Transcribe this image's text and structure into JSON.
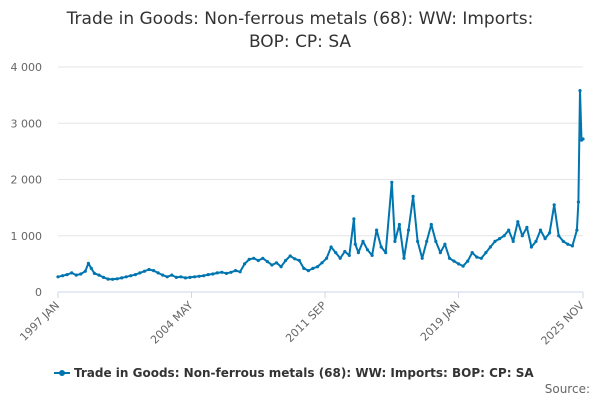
{
  "chart_data": {
    "type": "line",
    "title_lines": [
      "Trade in Goods: Non-ferrous metals (68): WW: Imports:",
      "BOP: CP: SA"
    ],
    "xlabel": "",
    "ylabel": "",
    "x_start": "1997-01",
    "x_end": "2025-11",
    "ylim": [
      0,
      4000
    ],
    "y_ticks": [
      0,
      1000,
      2000,
      3000,
      4000
    ],
    "y_tick_labels": [
      "0",
      "1 000",
      "2 000",
      "3 000",
      "4 000"
    ],
    "x_ticks": [
      {
        "label": "1997 JAN",
        "t": 1997.0
      },
      {
        "label": "2004 MAY",
        "t": 2004.333
      },
      {
        "label": "2011 SEP",
        "t": 2011.667
      },
      {
        "label": "2019 JAN",
        "t": 2019.0
      },
      {
        "label": "2025 NOV",
        "t": 2025.833
      }
    ],
    "legend_position": "bottom",
    "grid": true,
    "series": [
      {
        "name": "Trade in Goods: Non-ferrous metals (68): WW: Imports: BOP: CP: SA",
        "color": "#0075b0",
        "points": [
          [
            1997.0,
            270
          ],
          [
            1997.25,
            290
          ],
          [
            1997.5,
            310
          ],
          [
            1997.75,
            340
          ],
          [
            1998.0,
            300
          ],
          [
            1998.25,
            320
          ],
          [
            1998.5,
            370
          ],
          [
            1998.67,
            510
          ],
          [
            1998.83,
            420
          ],
          [
            1999.0,
            330
          ],
          [
            1999.25,
            300
          ],
          [
            1999.5,
            260
          ],
          [
            1999.75,
            230
          ],
          [
            2000.0,
            225
          ],
          [
            2000.25,
            235
          ],
          [
            2000.5,
            250
          ],
          [
            2000.75,
            270
          ],
          [
            2001.0,
            290
          ],
          [
            2001.25,
            310
          ],
          [
            2001.5,
            340
          ],
          [
            2001.75,
            370
          ],
          [
            2002.0,
            400
          ],
          [
            2002.25,
            380
          ],
          [
            2002.5,
            340
          ],
          [
            2002.75,
            300
          ],
          [
            2003.0,
            270
          ],
          [
            2003.25,
            300
          ],
          [
            2003.5,
            260
          ],
          [
            2003.75,
            270
          ],
          [
            2004.0,
            250
          ],
          [
            2004.25,
            260
          ],
          [
            2004.5,
            270
          ],
          [
            2004.75,
            280
          ],
          [
            2005.0,
            290
          ],
          [
            2005.25,
            310
          ],
          [
            2005.5,
            320
          ],
          [
            2005.75,
            340
          ],
          [
            2006.0,
            350
          ],
          [
            2006.25,
            330
          ],
          [
            2006.5,
            350
          ],
          [
            2006.75,
            380
          ],
          [
            2007.0,
            360
          ],
          [
            2007.25,
            500
          ],
          [
            2007.5,
            580
          ],
          [
            2007.75,
            600
          ],
          [
            2008.0,
            560
          ],
          [
            2008.25,
            600
          ],
          [
            2008.5,
            540
          ],
          [
            2008.75,
            480
          ],
          [
            2009.0,
            520
          ],
          [
            2009.25,
            450
          ],
          [
            2009.5,
            560
          ],
          [
            2009.75,
            640
          ],
          [
            2010.0,
            590
          ],
          [
            2010.25,
            560
          ],
          [
            2010.5,
            420
          ],
          [
            2010.75,
            380
          ],
          [
            2011.0,
            420
          ],
          [
            2011.25,
            450
          ],
          [
            2011.5,
            520
          ],
          [
            2011.75,
            600
          ],
          [
            2012.0,
            800
          ],
          [
            2012.25,
            700
          ],
          [
            2012.5,
            600
          ],
          [
            2012.75,
            720
          ],
          [
            2013.0,
            650
          ],
          [
            2013.25,
            1300
          ],
          [
            2013.33,
            850
          ],
          [
            2013.5,
            700
          ],
          [
            2013.75,
            900
          ],
          [
            2014.0,
            750
          ],
          [
            2014.25,
            650
          ],
          [
            2014.5,
            1100
          ],
          [
            2014.75,
            800
          ],
          [
            2015.0,
            700
          ],
          [
            2015.33,
            1950
          ],
          [
            2015.5,
            900
          ],
          [
            2015.75,
            1200
          ],
          [
            2016.0,
            600
          ],
          [
            2016.25,
            1100
          ],
          [
            2016.5,
            1700
          ],
          [
            2016.75,
            900
          ],
          [
            2017.0,
            600
          ],
          [
            2017.25,
            900
          ],
          [
            2017.5,
            1200
          ],
          [
            2017.75,
            900
          ],
          [
            2018.0,
            700
          ],
          [
            2018.25,
            850
          ],
          [
            2018.5,
            600
          ],
          [
            2018.75,
            550
          ],
          [
            2019.0,
            500
          ],
          [
            2019.25,
            460
          ],
          [
            2019.5,
            550
          ],
          [
            2019.75,
            700
          ],
          [
            2020.0,
            620
          ],
          [
            2020.25,
            600
          ],
          [
            2020.5,
            700
          ],
          [
            2020.75,
            800
          ],
          [
            2021.0,
            900
          ],
          [
            2021.25,
            950
          ],
          [
            2021.5,
            1000
          ],
          [
            2021.75,
            1100
          ],
          [
            2022.0,
            900
          ],
          [
            2022.25,
            1250
          ],
          [
            2022.5,
            1000
          ],
          [
            2022.75,
            1150
          ],
          [
            2023.0,
            800
          ],
          [
            2023.25,
            900
          ],
          [
            2023.5,
            1100
          ],
          [
            2023.75,
            950
          ],
          [
            2024.0,
            1050
          ],
          [
            2024.25,
            1550
          ],
          [
            2024.5,
            1000
          ],
          [
            2024.75,
            900
          ],
          [
            2025.0,
            850
          ],
          [
            2025.25,
            820
          ],
          [
            2025.5,
            1100
          ],
          [
            2025.58,
            1600
          ],
          [
            2025.67,
            3580
          ],
          [
            2025.75,
            2700
          ],
          [
            2025.833,
            2720
          ]
        ]
      }
    ],
    "credit_label": "Source:"
  }
}
